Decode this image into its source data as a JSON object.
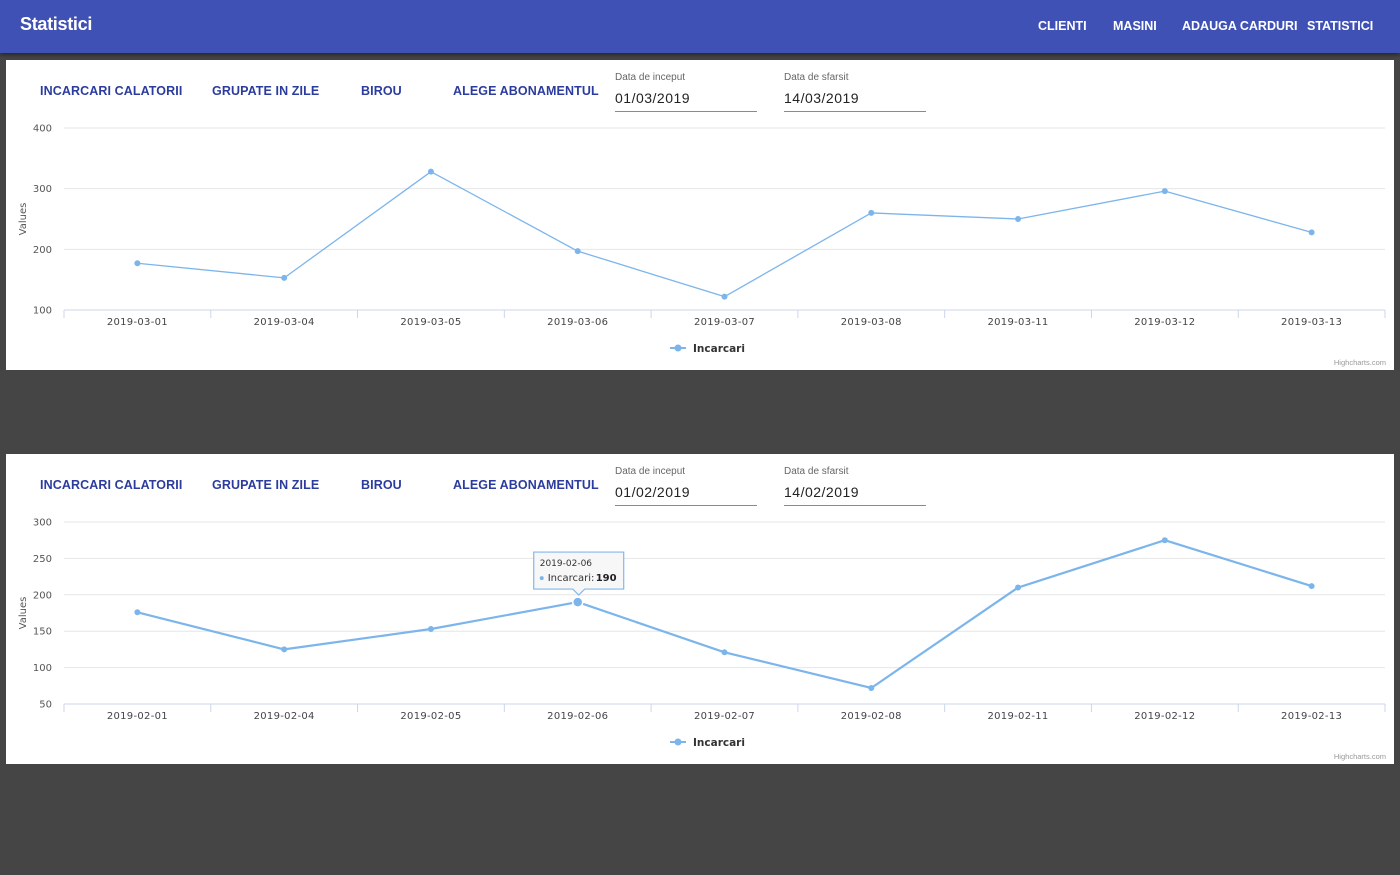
{
  "appbar": {
    "title": "Statistici",
    "nav": [
      "CLIENTI",
      "MASINI",
      "ADAUGA CARDURI",
      "STATISTICI"
    ]
  },
  "panels": [
    {
      "tabs": [
        "INCARCARI CALATORII",
        "GRUPATE IN ZILE",
        "BIROU",
        "ALEGE ABONAMENTUL"
      ],
      "start_label": "Data de inceput",
      "start_value": "01/03/2019",
      "end_label": "Data de sfarsit",
      "end_value": "14/03/2019",
      "credit": "Highcharts.com"
    },
    {
      "tabs": [
        "INCARCARI CALATORII",
        "GRUPATE IN ZILE",
        "BIROU",
        "ALEGE ABONAMENTUL"
      ],
      "start_label": "Data de inceput",
      "start_value": "01/02/2019",
      "end_label": "Data de sfarsit",
      "end_value": "14/02/2019",
      "credit": "Highcharts.com"
    }
  ],
  "chart_data": [
    {
      "type": "line",
      "ylabel": "Values",
      "x": [
        "2019-03-01",
        "2019-03-04",
        "2019-03-05",
        "2019-03-06",
        "2019-03-07",
        "2019-03-08",
        "2019-03-11",
        "2019-03-12",
        "2019-03-13"
      ],
      "series": [
        {
          "name": "Incarcari",
          "values": [
            177,
            153,
            328,
            197,
            122,
            260,
            250,
            296,
            228
          ]
        }
      ],
      "ylim": [
        100,
        400
      ],
      "yticks": [
        100,
        200,
        300,
        400
      ],
      "color": "#7cb5ec",
      "grid": true,
      "legend": "bottom-center"
    },
    {
      "type": "line",
      "ylabel": "Values",
      "x": [
        "2019-02-01",
        "2019-02-04",
        "2019-02-05",
        "2019-02-06",
        "2019-02-07",
        "2019-02-08",
        "2019-02-11",
        "2019-02-12",
        "2019-02-13"
      ],
      "series": [
        {
          "name": "Incarcari",
          "values": [
            176,
            125,
            153,
            190,
            121,
            72,
            210,
            275,
            212
          ]
        }
      ],
      "ylim": [
        50,
        300
      ],
      "yticks": [
        50,
        100,
        150,
        200,
        250,
        300
      ],
      "color": "#7cb5ec",
      "grid": true,
      "legend": "bottom-center",
      "tooltip": {
        "x": "2019-02-06",
        "series": "Incarcari",
        "value": "190"
      }
    }
  ]
}
